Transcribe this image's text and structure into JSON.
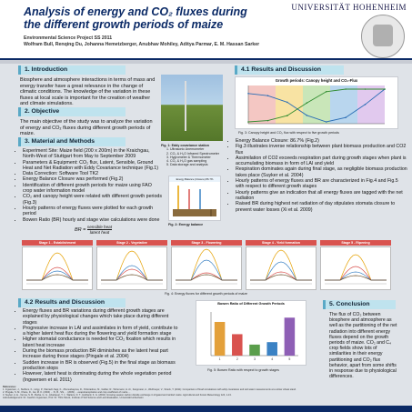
{
  "header": {
    "university": "UNIVERSITÄT HOHENHEIM",
    "title_line1": "Analysis of energy  and CO₂ fluxes during",
    "title_line2": "the different growth periods of maize",
    "subtitle": "Environmental Science Project SS 2011",
    "authors": "Wolfram Bull, Renqing Du, Johanna Hemetzberger, Anubhav Mohiley, Aditya Parmar, E. M. Hassan Sarker"
  },
  "sections": {
    "introduction": {
      "heading": "1. Introduction",
      "text": "Biosphere and atmosphere interactions in terms of mass and energy transfer have a great relevance in the change of climatic conditions. The knowledge of the variation in these fluxes at local scale is important for the creation of weather and climate simulations."
    },
    "objective": {
      "heading": "2. Objective",
      "text": "The main objective of the study was to analyze the variation of energy and CO₂ fluxes during different growth periods of maize."
    },
    "methods": {
      "heading": "3. Material and Methods",
      "bullets": [
        "Experiment Site: Maize field (200 x 200m) in the Kraichgau, North-West of Stuttgart from May to September 2009",
        "Parameters & Equipment: CO₂ flux, Latent, Sensible, Ground Heat and Net Radiation with Eddy Covariance technique (Fig.1)",
        "Data Correction: Software Tool TK2",
        "Energy Balance Closure was performed (Fig.2)",
        "Identification of different growth periods for maize using FAO crop water information model",
        "CO₂ and canopy height were related with different growth periods (Fig.3)",
        "Hourly patterns of energy fluxes were plotted for each growth period",
        "Bowen Ratio (BR) hourly and stage wise calculations were done"
      ],
      "formula_lhs": "BR =",
      "formula_num": "sensible heat",
      "formula_den": "latent heat"
    },
    "fig1": {
      "caption_title": "Fig. 1: Eddy covariance station",
      "items": [
        "1. Ultrasonic Anemometer",
        "2. CO₂ & H₂O Infrared Spectrometer",
        "3. Hygrometer & Thermometer",
        "4. CO₂ & H₂O gas sampling",
        "5. Data storage and analysis"
      ]
    },
    "fig2": {
      "caption": "Fig. 2: Energy balance",
      "box_title": "Energy Balance (Closure) 86.7%"
    },
    "results_top": {
      "heading": "4.1 Results and Discussion",
      "chart_title": "Growth periods: Canopy height and CO₂-Flux",
      "fig3_caption": "Fig. 3: Canopy height and CO₂ flux with respect to five growth periods",
      "bullets": [
        "Energy Balance Closure: 86.7% (Fig.2)",
        "Fig.3 illustrates inverse relationship between plant biomass production and CO2 flux",
        "Assimilation of CO2  exceeds respiration part during growth stages when plant is accumulating biomass in form of LAI and yield",
        "Respiration dominates again during final stage, as negligible biomass production takes place (Suyker et al. 2004)",
        "Hourly patterns of energy fluxes and BR are characterized in Fig.4 and Fig.5 with respect to different growth stages",
        "Hourly patterns give an indication that all energy fluxes are tagged with the net radiation",
        "Raised BR during highest net radiation of day stipulates stomata closure to prevent water losses (Xi et al. 2009)"
      ]
    },
    "stages": [
      "Stage 1 - Establishment",
      "Stage 2 - Vegetative",
      "Stage 3 - Flowering",
      "Stage 4 - Yield formation",
      "Stage 5 - Ripening"
    ],
    "fig4_caption": "Fig. 4: Energy fluxes for different growth periods of maize",
    "results_bottom": {
      "heading": "4.2 Results and Discussion",
      "bullets": [
        "Energy fluxes and BR variations during different growth stages are explained by physiological changes which take place during different stages",
        "Progressive increase in LAI and assimilates in form of yield, contribute to a higher latent heat flux during the flowering and yield formation stage",
        "Higher stomatal conductance is needed for CO₂ fixation which results in latent heat increase",
        "During the biomass production BR diminishes as the latent heat part increase during those stages (Pingale et al. 2004)",
        "Sudden increase in BR is observed (Fig.5) in the final stage as biomass production stops",
        "However, latent heat is dominating during the whole vegetation period (Ingwersen et al. 2011)"
      ],
      "bowen_title": "Bowen Ratio of Different Growth Periods",
      "fig5_caption": "Fig. 5: Bowen Ratio with respect to growth stages"
    },
    "conclusion": {
      "heading": "5. Conclusion",
      "text": "The flux of CO₂ between biosphere and atmosphere as well as the partitioning of the net radiation into different energy fluxes depend on the growth periods of maize. CO₂ and C₄ crop fields show lots of similarities in their energy partitioning and CO₂ flux behavior, apart from some shifts in response due to physiological differences."
    },
    "references": {
      "heading": "References:",
      "lines": [
        "1. Ingwersen, J., Steffens, K., Högy, P., Warrach-Sagi, K., Zhunusbayeva, D., Poltoradnev, M., Gäbler, R., Wizemann, H.-D., Fangmeier, A., Wulfmeyer, V., Streck, T. (2011): Comparison of Noah simulations with eddy covariance and soil water measurements at a winter wheat stand.",
        "2. Pingale, S. M., Khare, D., Jat, M. K. (2004) ... Xi, B., Shi, ... (2009) ... evapotranspiration and crop coefficient of maize ...",
        "3. Suyker, A. E., Verma, S. B., Burba, G. G., Arkebauer, T. J., Walters, D. T., Hubbard, K. G. (2004): Growing season carbon dioxide exchange in irrigated and rainfed maize. Agricultural and Forest Meteorology 124, 1-13."
      ],
      "ack": "Acknowledgement: Dr. Joachim Ingwersen, Prof. Dr. Thilo Streck, Institute of Soil Science and Land Evaluation, Universität Hohenheim"
    }
  },
  "chart_data": [
    {
      "type": "line",
      "title": "Growth periods: Canopy height and CO₂-Flux",
      "x": [
        0,
        20,
        40,
        60,
        80,
        100,
        120,
        140
      ],
      "series": [
        {
          "values": [
            -2,
            -4,
            -10,
            -22,
            -28,
            -24,
            -12,
            2
          ]
        },
        {
          "values": [
            0,
            0.1,
            0.5,
            1.5,
            2.4,
            2.6,
            2.6,
            2.6
          ]
        }
      ],
      "stage_colors": [
        "#f4c7c3",
        "#f8e3a3",
        "#c9e6b9",
        "#b9d6ee",
        "#e1c9ee"
      ]
    },
    {
      "type": "bar",
      "title": "Bowen Ratio of Different Growth Periods",
      "categories": [
        "1",
        "2",
        "3",
        "4",
        "5"
      ],
      "series": [
        {
          "values": [
            0.55,
            0.35,
            0.18,
            0.22,
            0.62
          ]
        }
      ]
    }
  ]
}
